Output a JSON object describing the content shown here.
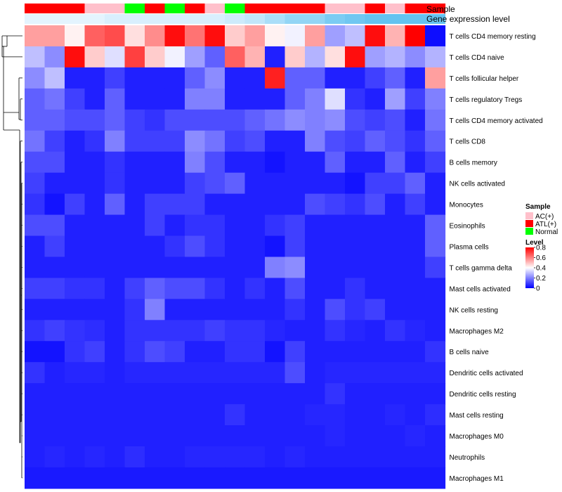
{
  "chart_data": {
    "type": "heatmap",
    "annotation_tracks": [
      "Sample",
      "Gene expression level"
    ],
    "sample_groups": [
      "ATL(+)",
      "ATL(+)",
      "ATL(+)",
      "AC(+)",
      "AC(+)",
      "Normal",
      "ATL(+)",
      "Normal",
      "ATL(+)",
      "AC(+)",
      "Normal",
      "ATL(+)",
      "ATL(+)",
      "ATL(+)",
      "ATL(+)",
      "AC(+)",
      "AC(+)",
      "ATL(+)",
      "AC(+)",
      "ATL(+)",
      "ATL(+)"
    ],
    "gene_expression_level": [
      0.05,
      0.05,
      0.05,
      0.05,
      0.1,
      0.1,
      0.1,
      0.1,
      0.1,
      0.1,
      0.15,
      0.2,
      0.3,
      0.4,
      0.4,
      0.5,
      0.55,
      0.6,
      0.7,
      0.8,
      0.85
    ],
    "rows": [
      "T cells CD4 memory resting",
      "T cells CD4 naive",
      "T cells follicular helper",
      "T cells regulatory  Tregs",
      "T cells CD4 memory activated",
      "T cells CD8",
      "B cells memory",
      "NK cells activated",
      "Monocytes",
      "Eosinophils",
      "Plasma cells",
      "T cells gamma delta",
      "Mast cells activated",
      "NK cells resting",
      "Macrophages M2",
      "B cells naive",
      "Dendritic cells activated",
      "Dendritic cells resting",
      "Mast cells resting",
      "Macrophages M0",
      "Neutrophils",
      "Macrophages M1"
    ],
    "values": [
      [
        0.55,
        0.55,
        0.42,
        0.65,
        0.68,
        0.45,
        0.58,
        0.78,
        0.62,
        0.78,
        0.48,
        0.55,
        0.42,
        0.38,
        0.55,
        0.25,
        0.3,
        0.78,
        0.52,
        0.8,
        0.02
      ],
      [
        0.3,
        0.22,
        0.78,
        0.48,
        0.35,
        0.7,
        0.48,
        0.38,
        0.25,
        0.15,
        0.65,
        0.52,
        0.05,
        0.48,
        0.28,
        0.45,
        0.78,
        0.25,
        0.28,
        0.22,
        0.28
      ],
      [
        0.22,
        0.3,
        0.05,
        0.05,
        0.1,
        0.05,
        0.05,
        0.05,
        0.15,
        0.22,
        0.05,
        0.05,
        0.75,
        0.15,
        0.15,
        0.05,
        0.05,
        0.1,
        0.15,
        0.05,
        0.55
      ],
      [
        0.15,
        0.18,
        0.1,
        0.05,
        0.15,
        0.05,
        0.05,
        0.05,
        0.2,
        0.2,
        0.05,
        0.05,
        0.05,
        0.15,
        0.2,
        0.35,
        0.08,
        0.05,
        0.25,
        0.1,
        0.2
      ],
      [
        0.15,
        0.15,
        0.12,
        0.12,
        0.15,
        0.1,
        0.08,
        0.12,
        0.12,
        0.12,
        0.12,
        0.15,
        0.18,
        0.22,
        0.2,
        0.22,
        0.12,
        0.1,
        0.12,
        0.05,
        0.18
      ],
      [
        0.18,
        0.1,
        0.05,
        0.08,
        0.2,
        0.1,
        0.1,
        0.1,
        0.22,
        0.18,
        0.1,
        0.12,
        0.05,
        0.05,
        0.2,
        0.12,
        0.1,
        0.15,
        0.12,
        0.08,
        0.15
      ],
      [
        0.12,
        0.12,
        0.05,
        0.05,
        0.08,
        0.05,
        0.05,
        0.05,
        0.2,
        0.12,
        0.05,
        0.05,
        0.03,
        0.05,
        0.05,
        0.15,
        0.05,
        0.05,
        0.15,
        0.05,
        0.1
      ],
      [
        0.1,
        0.05,
        0.05,
        0.05,
        0.08,
        0.05,
        0.05,
        0.05,
        0.1,
        0.12,
        0.15,
        0.05,
        0.05,
        0.05,
        0.05,
        0.05,
        0.03,
        0.1,
        0.1,
        0.15,
        0.05
      ],
      [
        0.08,
        0.03,
        0.1,
        0.05,
        0.15,
        0.05,
        0.1,
        0.1,
        0.1,
        0.05,
        0.05,
        0.05,
        0.05,
        0.05,
        0.12,
        0.1,
        0.08,
        0.12,
        0.05,
        0.1,
        0.05
      ],
      [
        0.12,
        0.12,
        0.05,
        0.05,
        0.05,
        0.05,
        0.1,
        0.05,
        0.08,
        0.08,
        0.05,
        0.05,
        0.08,
        0.1,
        0.05,
        0.05,
        0.05,
        0.05,
        0.05,
        0.05,
        0.15
      ],
      [
        0.05,
        0.1,
        0.05,
        0.05,
        0.05,
        0.05,
        0.05,
        0.08,
        0.12,
        0.08,
        0.05,
        0.05,
        0.03,
        0.1,
        0.05,
        0.05,
        0.05,
        0.05,
        0.05,
        0.05,
        0.15
      ],
      [
        0.05,
        0.05,
        0.05,
        0.05,
        0.05,
        0.05,
        0.05,
        0.05,
        0.05,
        0.05,
        0.05,
        0.05,
        0.2,
        0.22,
        0.05,
        0.05,
        0.05,
        0.05,
        0.05,
        0.05,
        0.1
      ],
      [
        0.1,
        0.1,
        0.08,
        0.08,
        0.05,
        0.1,
        0.15,
        0.12,
        0.12,
        0.08,
        0.05,
        0.08,
        0.05,
        0.12,
        0.05,
        0.05,
        0.08,
        0.05,
        0.05,
        0.05,
        0.05
      ],
      [
        0.05,
        0.05,
        0.05,
        0.05,
        0.05,
        0.08,
        0.2,
        0.05,
        0.05,
        0.05,
        0.05,
        0.05,
        0.05,
        0.08,
        0.05,
        0.12,
        0.08,
        0.1,
        0.05,
        0.05,
        0.05
      ],
      [
        0.08,
        0.1,
        0.08,
        0.07,
        0.05,
        0.08,
        0.08,
        0.08,
        0.08,
        0.1,
        0.08,
        0.08,
        0.06,
        0.05,
        0.05,
        0.08,
        0.06,
        0.05,
        0.08,
        0.06,
        0.05
      ],
      [
        0.03,
        0.03,
        0.08,
        0.1,
        0.05,
        0.08,
        0.12,
        0.1,
        0.05,
        0.05,
        0.08,
        0.08,
        0.03,
        0.1,
        0.05,
        0.05,
        0.05,
        0.05,
        0.05,
        0.05,
        0.08
      ],
      [
        0.08,
        0.05,
        0.06,
        0.06,
        0.05,
        0.06,
        0.06,
        0.06,
        0.06,
        0.06,
        0.06,
        0.06,
        0.06,
        0.12,
        0.05,
        0.06,
        0.06,
        0.06,
        0.06,
        0.06,
        0.06
      ],
      [
        0.05,
        0.05,
        0.05,
        0.05,
        0.05,
        0.05,
        0.05,
        0.05,
        0.05,
        0.05,
        0.05,
        0.05,
        0.05,
        0.05,
        0.05,
        0.08,
        0.05,
        0.05,
        0.05,
        0.05,
        0.05
      ],
      [
        0.05,
        0.05,
        0.05,
        0.05,
        0.05,
        0.05,
        0.05,
        0.05,
        0.05,
        0.05,
        0.08,
        0.05,
        0.05,
        0.05,
        0.06,
        0.06,
        0.05,
        0.05,
        0.06,
        0.05,
        0.07
      ],
      [
        0.05,
        0.05,
        0.05,
        0.05,
        0.05,
        0.05,
        0.05,
        0.05,
        0.05,
        0.05,
        0.05,
        0.05,
        0.05,
        0.05,
        0.05,
        0.06,
        0.05,
        0.05,
        0.05,
        0.06,
        0.05
      ],
      [
        0.05,
        0.06,
        0.05,
        0.06,
        0.05,
        0.07,
        0.05,
        0.05,
        0.06,
        0.06,
        0.06,
        0.06,
        0.05,
        0.06,
        0.05,
        0.05,
        0.05,
        0.05,
        0.05,
        0.05,
        0.05
      ],
      [
        0.04,
        0.04,
        0.04,
        0.04,
        0.04,
        0.04,
        0.04,
        0.04,
        0.04,
        0.04,
        0.04,
        0.04,
        0.04,
        0.04,
        0.04,
        0.04,
        0.04,
        0.04,
        0.04,
        0.04,
        0.04
      ]
    ],
    "color_scale": {
      "low": "#0000ff",
      "mid": "#ffffff",
      "high": "#ff0000",
      "domain": [
        0,
        0.4,
        0.8
      ]
    },
    "legend": {
      "sample_title": "Sample",
      "sample_entries": [
        {
          "label": "AC(+)",
          "color": "#ffc0cb"
        },
        {
          "label": "ATL(+)",
          "color": "#ff0000"
        },
        {
          "label": "Normal",
          "color": "#00ff00"
        }
      ],
      "level_title": "Level",
      "level_ticks": [
        "0.8",
        "0.6",
        "0.4",
        "0.2",
        "0"
      ],
      "level_tick_values": [
        0.8,
        0.6,
        0.4,
        0.2,
        0
      ]
    }
  }
}
